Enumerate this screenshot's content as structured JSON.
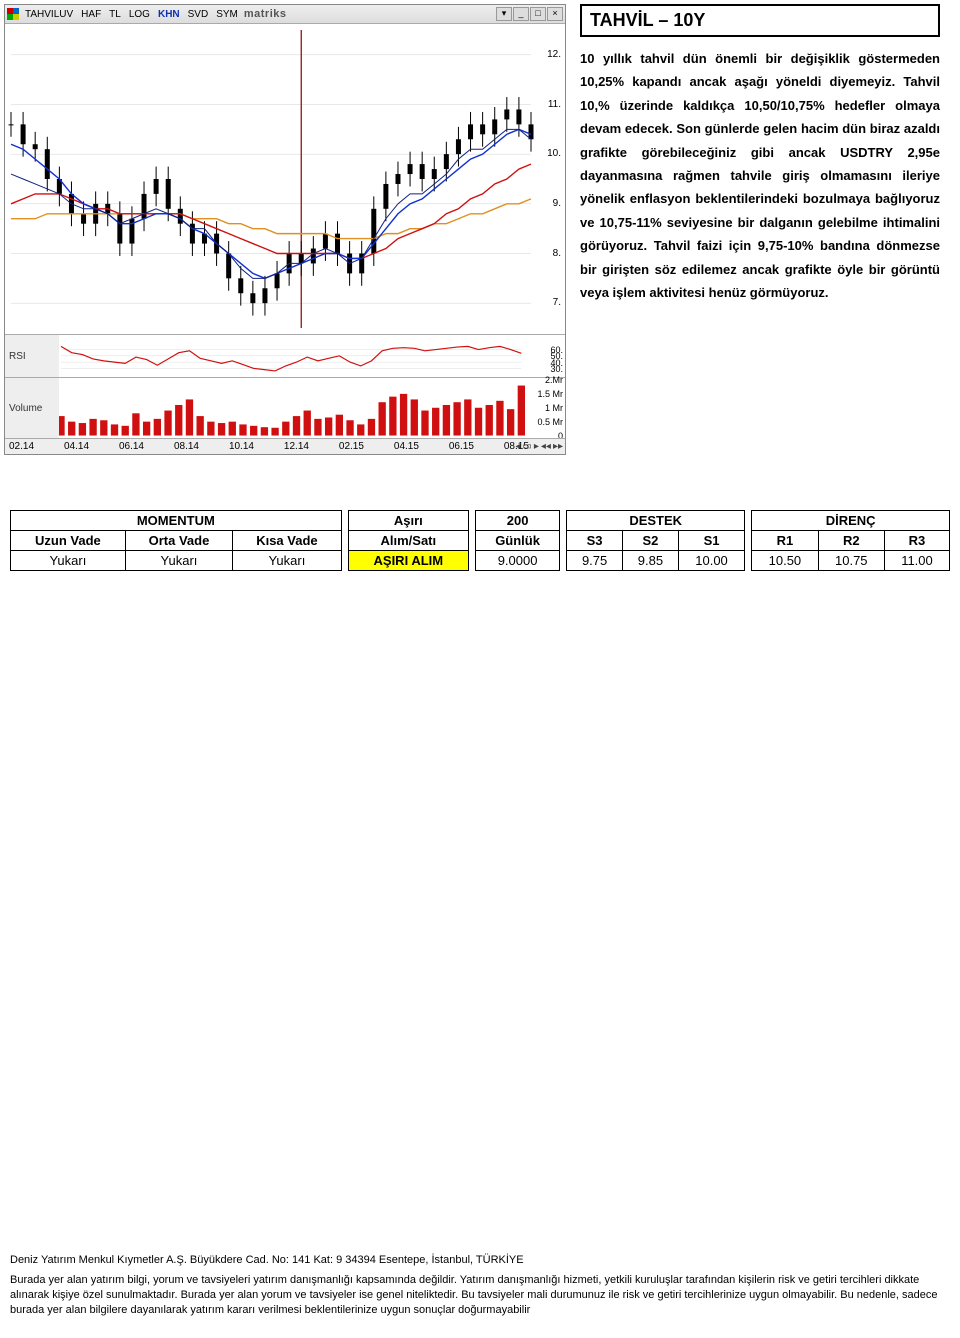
{
  "chart": {
    "titlebar_items": [
      "TAHVILUV",
      "HAF",
      "TL",
      "LOG",
      "KHN",
      "SVD",
      "SYM"
    ],
    "brand": "matriks",
    "window_buttons": [
      "▾",
      "_",
      "□",
      "×"
    ],
    "price": {
      "type": "candlestick+lines",
      "ylim": [
        6.5,
        12.5
      ],
      "yticks": [
        7,
        8,
        9,
        10,
        11,
        12
      ],
      "xticks": [
        "02.14",
        "04.14",
        "06.14",
        "08.14",
        "10.14",
        "12.14",
        "02.15",
        "04.15",
        "06.15",
        "08.15"
      ],
      "bg": "#ffffff",
      "grid_color": "#d0d0d0",
      "candle_up": "#000000",
      "candle_dn": "#000000",
      "line_blue": "#1030d0",
      "line_red": "#d01010",
      "line_orange": "#e09020",
      "line_navy": "#102080",
      "vline_color": "#8b0000",
      "series_close": [
        10.6,
        10.2,
        10.1,
        9.5,
        9.2,
        8.8,
        8.6,
        9.0,
        8.8,
        8.2,
        8.7,
        9.2,
        9.5,
        8.9,
        8.6,
        8.2,
        8.4,
        8.0,
        7.5,
        7.2,
        7.0,
        7.3,
        7.6,
        8.0,
        7.8,
        8.1,
        8.4,
        8.0,
        7.6,
        8.0,
        8.9,
        9.4,
        9.6,
        9.8,
        9.5,
        9.7,
        10.0,
        10.3,
        10.6,
        10.4,
        10.7,
        10.9,
        10.6,
        10.3
      ],
      "ma_blue": [
        10.2,
        10.1,
        9.9,
        9.7,
        9.5,
        9.2,
        9.0,
        8.9,
        8.8,
        8.6,
        8.6,
        8.7,
        8.8,
        8.8,
        8.7,
        8.5,
        8.4,
        8.2,
        8.0,
        7.8,
        7.6,
        7.5,
        7.6,
        7.7,
        7.8,
        7.9,
        8.0,
        8.0,
        7.9,
        7.9,
        8.2,
        8.5,
        8.8,
        9.0,
        9.1,
        9.3,
        9.5,
        9.7,
        9.9,
        10.0,
        10.2,
        10.4,
        10.5,
        10.4
      ],
      "ma_red": [
        9.0,
        9.1,
        9.2,
        9.2,
        9.2,
        9.1,
        9.0,
        8.9,
        8.9,
        8.8,
        8.8,
        8.8,
        8.8,
        8.8,
        8.8,
        8.7,
        8.6,
        8.5,
        8.4,
        8.3,
        8.2,
        8.1,
        8.0,
        8.0,
        8.0,
        8.0,
        8.0,
        8.0,
        7.9,
        7.9,
        8.0,
        8.1,
        8.3,
        8.4,
        8.5,
        8.6,
        8.8,
        8.9,
        9.1,
        9.2,
        9.4,
        9.5,
        9.7,
        9.8
      ],
      "ma_orange": [
        8.7,
        8.7,
        8.7,
        8.8,
        8.8,
        8.8,
        8.8,
        8.8,
        8.8,
        8.8,
        8.8,
        8.8,
        8.8,
        8.8,
        8.8,
        8.7,
        8.7,
        8.7,
        8.6,
        8.6,
        8.5,
        8.5,
        8.4,
        8.4,
        8.4,
        8.4,
        8.4,
        8.3,
        8.3,
        8.3,
        8.3,
        8.4,
        8.4,
        8.5,
        8.5,
        8.6,
        8.6,
        8.7,
        8.8,
        8.8,
        8.9,
        9.0,
        9.0,
        9.1
      ],
      "ma_navy": [
        9.6,
        9.5,
        9.4,
        9.3,
        9.2,
        9.0,
        8.9,
        8.9,
        8.8,
        8.6,
        8.7,
        8.8,
        8.9,
        8.8,
        8.7,
        8.5,
        8.5,
        8.2,
        8.0,
        7.7,
        7.5,
        7.5,
        7.6,
        7.8,
        7.8,
        8.0,
        8.1,
        8.0,
        7.8,
        7.9,
        8.3,
        8.7,
        9.0,
        9.2,
        9.2,
        9.4,
        9.6,
        9.9,
        10.1,
        10.1,
        10.3,
        10.5,
        10.5,
        10.3
      ],
      "vline_x_index": 24
    },
    "rsi": {
      "label": "RSI",
      "ylim": [
        20,
        80
      ],
      "yticks": [
        30,
        40,
        50,
        60
      ],
      "color": "#d01010",
      "bg": "#ffffff",
      "values": [
        65,
        55,
        52,
        45,
        42,
        40,
        38,
        48,
        44,
        35,
        45,
        55,
        58,
        46,
        42,
        38,
        42,
        36,
        30,
        28,
        26,
        34,
        40,
        48,
        42,
        46,
        50,
        40,
        34,
        42,
        58,
        62,
        63,
        62,
        58,
        60,
        62,
        64,
        65,
        60,
        63,
        65,
        60,
        54
      ]
    },
    "volume": {
      "label": "Volume",
      "ylim": [
        0,
        2000000
      ],
      "yticks_labels": [
        "2.Mr",
        "1.5 Mr",
        "1 Mr",
        "0.5 Mr",
        "0"
      ],
      "bar_color": "#d01010",
      "bg": "#ffffff",
      "values": [
        700,
        500,
        450,
        600,
        550,
        400,
        350,
        800,
        500,
        600,
        900,
        1100,
        1300,
        700,
        500,
        450,
        500,
        400,
        350,
        300,
        280,
        500,
        700,
        900,
        600,
        650,
        750,
        550,
        400,
        600,
        1200,
        1400,
        1500,
        1300,
        900,
        1000,
        1100,
        1200,
        1300,
        1000,
        1100,
        1250,
        950,
        1800
      ]
    }
  },
  "right": {
    "title": "TAHVİL – 10Y",
    "body": "10 yıllık tahvil dün önemli bir değişiklik göstermeden 10,25% kapandı ancak aşağı yöneldi diyemeyiz. Tahvil 10,% üzerinde kaldıkça 10,50/10,75% hedefler olmaya devam edecek. Son günlerde gelen hacim dün biraz azaldı grafikte görebileceğiniz gibi ancak USDTRY 2,95e dayanmasına rağmen tahvile giriş olmamasını ileriye yönelik enflasyon beklentilerindeki bozulmaya bağlıyoruz ve 10,75-11% seviyesine bir dalganın gelebilme ihtimalini görüyoruz. Tahvil faizi için 9,75-10% bandına dönmezse bir girişten söz edilemez ancak grafikte öyle bir görüntü veya işlem aktivitesi henüz görmüyoruz."
  },
  "table": {
    "group_headers": [
      "MOMENTUM",
      "Aşırı",
      "200",
      "DESTEK",
      "DİRENÇ"
    ],
    "sub_headers": [
      "Uzun Vade",
      "Orta Vade",
      "Kısa Vade",
      "Alım/Satı",
      "Günlük",
      "S3",
      "S2",
      "S1",
      "R1",
      "R2",
      "R3"
    ],
    "row": [
      "Yukarı",
      "Yukarı",
      "Yukarı",
      "AŞIRI ALIM",
      "9.0000",
      "9.75",
      "9.85",
      "10.00",
      "10.50",
      "10.75",
      "11.00"
    ]
  },
  "footer": {
    "line1": "Deniz Yatırım Menkul Kıymetler A.Ş.   Büyükdere Cad. No: 141 Kat: 9 34394 Esentepe, İstanbul, TÜRKİYE",
    "body": "Burada yer alan yatırım bilgi, yorum ve tavsiyeleri yatırım danışmanlığı kapsamında değildir. Yatırım danışmanlığı hizmeti, yetkili kuruluşlar tarafından kişilerin risk ve getiri tercihleri dikkate alınarak kişiye özel sunulmaktadır. Burada yer alan yorum ve tavsiyeler ise genel niteliktedir. Bu tavsiyeler mali durumunuz ile risk ve getiri tercihlerinize uygun olmayabilir. Bu nedenle, sadece burada yer alan bilgilere dayanılarak yatırım kararı verilmesi beklentilerinize uygun sonuçlar doğurmayabilir"
  }
}
